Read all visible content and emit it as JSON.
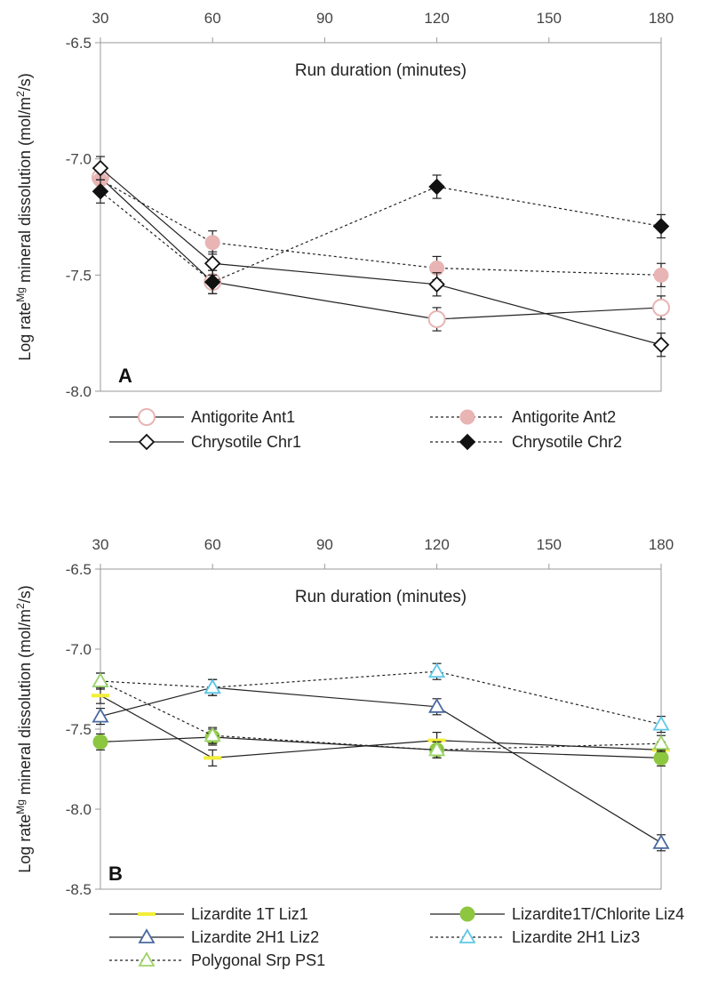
{
  "chart_data": [
    {
      "type": "line",
      "panel_label": "A",
      "xlabel": "Run duration (minutes)",
      "ylabel_prefix": "Log rate",
      "ylabel_sup": "Mg",
      "ylabel_middle": " mineral dissolution (mol/m",
      "ylabel_sup2": "2",
      "ylabel_suffix": "/s)",
      "x_ticks": [
        30,
        60,
        90,
        120,
        150,
        180
      ],
      "x_tick_labels": [
        "30",
        "60",
        "90",
        "120",
        "150",
        "180"
      ],
      "y_ticks": [
        -6.5,
        -7.0,
        -7.5,
        -8.0
      ],
      "y_tick_labels": [
        "-6.5",
        "-7.0",
        "-7.5",
        "-8.0"
      ],
      "xlim": [
        30,
        180
      ],
      "ylim": [
        -8.0,
        -6.5
      ],
      "x_axis_position": "top",
      "legend_position": "bottom",
      "series": [
        {
          "name": "Antigorite Ant1",
          "x": [
            30,
            60,
            120,
            180
          ],
          "y": [
            -7.08,
            -7.53,
            -7.69,
            -7.64
          ],
          "err": 0.05,
          "marker": "circle-open",
          "color": "#e8b4b4",
          "dash": false
        },
        {
          "name": "Antigorite Ant2",
          "x": [
            30,
            60,
            120,
            180
          ],
          "y": [
            -7.09,
            -7.36,
            -7.47,
            -7.5
          ],
          "err": 0.05,
          "marker": "circle-filled",
          "color": "#e8b4b4",
          "dash": true
        },
        {
          "name": "Chrysotile Chr1",
          "x": [
            30,
            60,
            120,
            180
          ],
          "y": [
            -7.04,
            -7.45,
            -7.54,
            -7.8
          ],
          "err": 0.05,
          "marker": "diamond-open",
          "color": "#111111",
          "dash": false
        },
        {
          "name": "Chrysotile Chr2",
          "x": [
            30,
            60,
            120,
            180
          ],
          "y": [
            -7.14,
            -7.53,
            -7.12,
            -7.29
          ],
          "err": 0.05,
          "marker": "diamond-filled",
          "color": "#111111",
          "dash": true
        }
      ]
    },
    {
      "type": "line",
      "panel_label": "B",
      "xlabel": "Run duration (minutes)",
      "ylabel_prefix": "Log rate",
      "ylabel_sup": "Mg",
      "ylabel_middle": " mineral dissolution (mol/m",
      "ylabel_sup2": "2",
      "ylabel_suffix": "/s)",
      "x_ticks": [
        30,
        60,
        90,
        120,
        150,
        180
      ],
      "x_tick_labels": [
        "30",
        "60",
        "90",
        "120",
        "150",
        "180"
      ],
      "y_ticks": [
        -6.5,
        -7.0,
        -7.5,
        -8.0,
        -8.5
      ],
      "y_tick_labels": [
        "-6.5",
        "-7.0",
        "-7.5",
        "-8.0",
        "-8.5"
      ],
      "xlim": [
        30,
        180
      ],
      "ylim": [
        -8.5,
        -6.5
      ],
      "x_axis_position": "top",
      "legend_position": "bottom",
      "series": [
        {
          "name": "Lizardite 1T Liz1",
          "x": [
            30,
            60,
            120,
            180
          ],
          "y": [
            -7.29,
            -7.68,
            -7.57,
            -7.63
          ],
          "err": 0.05,
          "marker": "dash",
          "color": "#f2ee3a",
          "dash": false
        },
        {
          "name": "Lizardite1T/Chlorite Liz4",
          "x": [
            30,
            60,
            120,
            180
          ],
          "y": [
            -7.58,
            -7.55,
            -7.63,
            -7.68
          ],
          "err": 0.05,
          "marker": "circle-filled",
          "color": "#8dc63f",
          "dash": false
        },
        {
          "name": "Lizardite 2H1 Liz2",
          "x": [
            30,
            60,
            120,
            180
          ],
          "y": [
            -7.42,
            -7.24,
            -7.36,
            -8.21
          ],
          "err": 0.05,
          "marker": "triangle-open",
          "color": "#4a6aa0",
          "dash": false
        },
        {
          "name": "Lizardite 2H1 Liz3",
          "x": [
            30,
            60,
            120,
            180
          ],
          "y": [
            -7.2,
            -7.24,
            -7.14,
            -7.47
          ],
          "err": 0.05,
          "marker": "triangle-open",
          "color": "#5ec8e8",
          "dash": true
        },
        {
          "name": "Polygonal Srp PS1",
          "x": [
            30,
            60,
            120,
            180
          ],
          "y": [
            -7.2,
            -7.54,
            -7.63,
            -7.59
          ],
          "err": 0.05,
          "marker": "triangle-open",
          "color": "#9ed36a",
          "dash": true
        }
      ]
    }
  ]
}
